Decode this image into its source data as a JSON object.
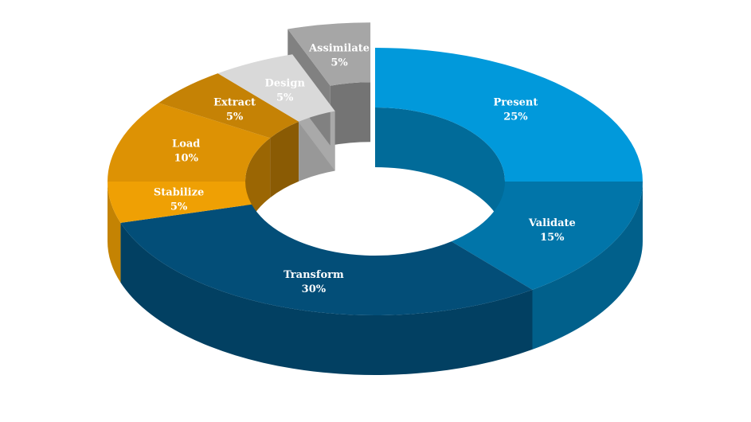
{
  "chart_data": {
    "type": "pie",
    "style": "3d-donut",
    "title": "",
    "legend": "none",
    "start_angle_deg": -90,
    "direction": "clockwise",
    "exploded": [
      "Assimilate"
    ],
    "series": [
      {
        "label": "Present",
        "value_label": "25%",
        "value": 25,
        "color": "#0199db"
      },
      {
        "label": "Validate",
        "value_label": "15%",
        "value": 15,
        "color": "#0175a9"
      },
      {
        "label": "Transform",
        "value_label": "30%",
        "value": 30,
        "color": "#034e78"
      },
      {
        "label": "Stabilize",
        "value_label": "5%",
        "value": 5,
        "color": "#efa004"
      },
      {
        "label": "Load",
        "value_label": "10%",
        "value": 10,
        "color": "#dd9204"
      },
      {
        "label": "Extract",
        "value_label": "5%",
        "value": 5,
        "color": "#c58205"
      },
      {
        "label": "Design",
        "value_label": "5%",
        "value": 5,
        "color": "#d9d9d9"
      },
      {
        "label": "Assimilate",
        "value_label": "5%",
        "value": 5,
        "color": "#a6a6a6"
      }
    ]
  }
}
